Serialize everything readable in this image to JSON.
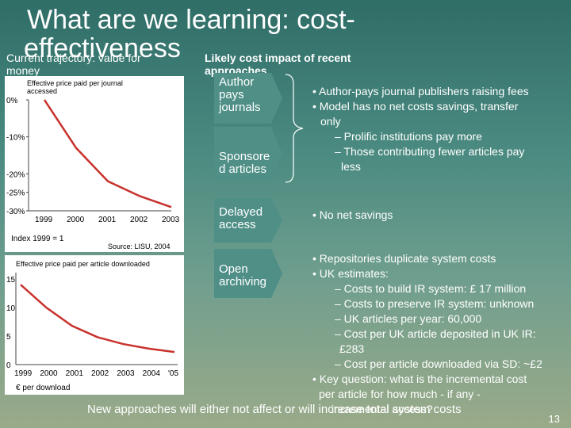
{
  "title": {
    "line1": "What are we learning: cost-",
    "line2": "effectiveness"
  },
  "left_heading": {
    "line1": "Current trajectory: value for",
    "line2": "money"
  },
  "right_heading": {
    "line1": "Likely cost impact of recent",
    "line2": "approaches"
  },
  "chart1": {
    "subtitle_line1": "Effective price paid per journal",
    "subtitle_line2": "accessed",
    "y_ticks": [
      "0%",
      "-10%",
      "-20%",
      "-25%",
      "-30%"
    ],
    "x_ticks": [
      "1999",
      "2000",
      "2001",
      "2002",
      "2003"
    ],
    "index_note": "Index 1999 = 1",
    "source": "Source: LISU, 2004"
  },
  "chart2": {
    "subtitle": "Effective price paid per article downloaded",
    "y_ticks": [
      "15",
      "10",
      "5",
      "0"
    ],
    "x_ticks": [
      "1999",
      "2000",
      "2001",
      "2002",
      "2003",
      "2004",
      "'05"
    ],
    "unit": "€ per download"
  },
  "chart_data": [
    {
      "type": "line",
      "title": "Effective price paid per journal accessed",
      "x": [
        1999,
        2000,
        2001,
        2002,
        2003
      ],
      "y": [
        0,
        -13,
        -22,
        -26,
        -29
      ],
      "ylim": [
        -30,
        0
      ],
      "y_unit": "%"
    },
    {
      "type": "line",
      "title": "Effective price paid per article downloaded",
      "x": [
        1999,
        2000,
        2001,
        2002,
        2003,
        2004,
        2005
      ],
      "y": [
        14,
        10,
        6.8,
        4.8,
        3.6,
        2.8,
        2.2
      ],
      "ylim": [
        0,
        15
      ],
      "y_unit": "€ per download"
    }
  ],
  "approaches": [
    {
      "label_lines": [
        "Author",
        "pays",
        "journals"
      ]
    },
    {
      "label_lines": [
        "Sponsore",
        "d articles"
      ]
    },
    {
      "label_lines": [
        "Delayed",
        "access"
      ]
    },
    {
      "label_lines": [
        "Open",
        "archiving"
      ]
    }
  ],
  "impacts": {
    "group1": {
      "bullet1": "• Author-pays journal publishers raising fees",
      "bullet2_line1": "• Model has no net costs savings, transfer",
      "bullet2_line2": "only",
      "sub1": "– Prolific institutions pay more",
      "sub2_line1": "– Those contributing fewer articles pay",
      "sub2_line2": "less"
    },
    "group2": {
      "bullet1": "• No net savings"
    },
    "group3": {
      "bullet1": "• Repositories duplicate system costs",
      "bullet2": "• UK estimates:",
      "sub1": "– Costs to build IR system: £ 17 million",
      "sub2": "– Costs to preserve IR system: unknown",
      "sub3": "– UK articles per year: 60,000",
      "sub4_line1": "– Cost per UK article deposited in UK IR:",
      "sub4_line2": "£283",
      "sub5": "– Cost per article downloaded via SD: ~£2",
      "bullet3_line1": "• Key question: what is the incremental cost",
      "bullet3_line2": "per article for how much - if any -",
      "bullet3_line3": "incremental access?"
    }
  },
  "footer": "New approaches will either not affect or will increase total system costs",
  "page_number": "13",
  "colors": {
    "arrow_fill": "#4f8f86",
    "curve": "#c8322d",
    "brace": "#ffffff"
  }
}
